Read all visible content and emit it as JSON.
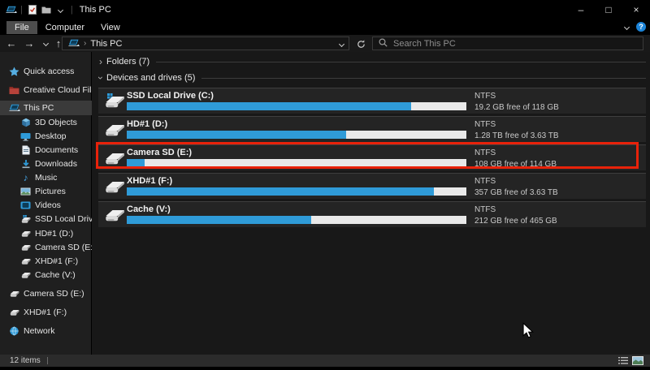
{
  "titlebar": {
    "title": "This PC"
  },
  "ribbon": {
    "tabs": [
      {
        "label": "File",
        "active": true
      },
      {
        "label": "Computer",
        "active": false
      },
      {
        "label": "View",
        "active": false
      }
    ]
  },
  "navbar": {
    "breadcrumb": "This PC",
    "search_placeholder": "Search This PC"
  },
  "sidebar": {
    "items": [
      {
        "label": "Quick access",
        "icon": "star",
        "indent": 0,
        "selected": false
      },
      {
        "label": "Creative Cloud Files",
        "icon": "ccfolder",
        "indent": 0,
        "selected": false
      },
      {
        "label": "This PC",
        "icon": "laptop",
        "indent": 0,
        "selected": true
      },
      {
        "label": "3D Objects",
        "icon": "cube",
        "indent": 1,
        "selected": false
      },
      {
        "label": "Desktop",
        "icon": "monitor",
        "indent": 1,
        "selected": false
      },
      {
        "label": "Documents",
        "icon": "document",
        "indent": 1,
        "selected": false
      },
      {
        "label": "Downloads",
        "icon": "download",
        "indent": 1,
        "selected": false
      },
      {
        "label": "Music",
        "icon": "music",
        "indent": 1,
        "selected": false
      },
      {
        "label": "Pictures",
        "icon": "picture",
        "indent": 1,
        "selected": false
      },
      {
        "label": "Videos",
        "icon": "video",
        "indent": 1,
        "selected": false
      },
      {
        "label": "SSD Local Drive (C:)",
        "icon": "drivesys",
        "indent": 1,
        "selected": false
      },
      {
        "label": "HD#1 (D:)",
        "icon": "drive",
        "indent": 1,
        "selected": false
      },
      {
        "label": "Camera SD (E:)",
        "icon": "drive",
        "indent": 1,
        "selected": false
      },
      {
        "label": "XHD#1 (F:)",
        "icon": "drive",
        "indent": 1,
        "selected": false
      },
      {
        "label": "Cache (V:)",
        "icon": "drive",
        "indent": 1,
        "selected": false
      },
      {
        "label": "Camera SD (E:)",
        "icon": "drive",
        "indent": 0,
        "selected": false
      },
      {
        "label": "XHD#1 (F:)",
        "icon": "drive",
        "indent": 0,
        "selected": false
      },
      {
        "label": "Network",
        "icon": "network",
        "indent": 0,
        "selected": false
      }
    ]
  },
  "main": {
    "sections": [
      {
        "label": "Folders (7)",
        "expanded": false
      },
      {
        "label": "Devices and drives (5)",
        "expanded": true
      }
    ],
    "drives": [
      {
        "name": "SSD Local Drive (C:)",
        "filesystem": "NTFS",
        "free_text": "19.2 GB free of 118 GB",
        "used_percent": 83.7,
        "system_drive": true,
        "highlighted": false
      },
      {
        "name": "HD#1 (D:)",
        "filesystem": "NTFS",
        "free_text": "1.28 TB free of 3.63 TB",
        "used_percent": 64.7,
        "system_drive": false,
        "highlighted": false
      },
      {
        "name": "Camera SD (E:)",
        "filesystem": "NTFS",
        "free_text": "108 GB free of 114 GB",
        "used_percent": 5.3,
        "system_drive": false,
        "highlighted": true
      },
      {
        "name": "XHD#1 (F:)",
        "filesystem": "NTFS",
        "free_text": "357 GB free of 3.63 TB",
        "used_percent": 90.4,
        "system_drive": false,
        "highlighted": false
      },
      {
        "name": "Cache (V:)",
        "filesystem": "NTFS",
        "free_text": "212 GB free of 465 GB",
        "used_percent": 54.4,
        "system_drive": false,
        "highlighted": false
      }
    ]
  },
  "statusbar": {
    "items_count": "12 items"
  },
  "colors": {
    "accent_blue": "#2f9bd8",
    "bar_track": "#e9e9e9",
    "highlight_red": "#e8220a",
    "selection_gray": "#3a3a3a"
  }
}
